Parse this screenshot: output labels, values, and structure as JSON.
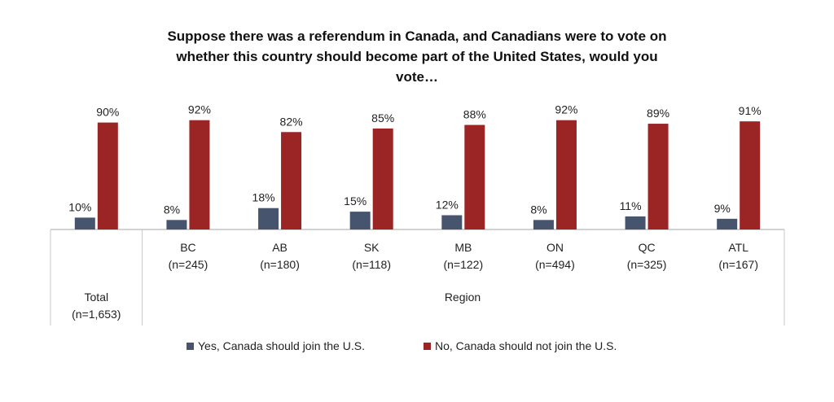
{
  "chart_data": {
    "type": "bar",
    "title_lines": [
      "Suppose there was a referendum in Canada, and Canadians were to vote on",
      "whether this country should become part of the United States, would you",
      "vote…"
    ],
    "categories": [
      {
        "label": "Total",
        "n": "(n=1,653)"
      },
      {
        "label": "BC",
        "n": "(n=245)"
      },
      {
        "label": "AB",
        "n": "(n=180)"
      },
      {
        "label": "SK",
        "n": "(n=118)"
      },
      {
        "label": "MB",
        "n": "(n=122)"
      },
      {
        "label": "ON",
        "n": "(n=494)"
      },
      {
        "label": "QC",
        "n": "(n=325)"
      },
      {
        "label": "ATL",
        "n": "(n=167)"
      }
    ],
    "group_label": "Region",
    "series": [
      {
        "name": "Yes, Canada should join the U.S.",
        "color": "#46546d",
        "values": [
          10,
          8,
          18,
          15,
          12,
          8,
          11,
          9
        ],
        "labels": [
          "10%",
          "8%",
          "18%",
          "15%",
          "12%",
          "8%",
          "11%",
          "9%"
        ]
      },
      {
        "name": "No, Canada should not join the U.S.",
        "color": "#9b2424",
        "values": [
          90,
          92,
          82,
          85,
          88,
          92,
          89,
          91
        ],
        "labels": [
          "90%",
          "92%",
          "82%",
          "85%",
          "88%",
          "92%",
          "89%",
          "91%"
        ]
      }
    ],
    "ylim": [
      0,
      100
    ],
    "legend": "bottom"
  }
}
